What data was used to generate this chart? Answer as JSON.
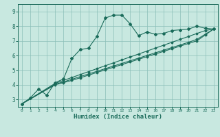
{
  "title": "",
  "xlabel": "Humidex (Indice chaleur)",
  "ylabel": "",
  "bg_color": "#c8e8e0",
  "grid_color": "#8bbfb8",
  "line_color": "#1a6b5a",
  "xlim": [
    -0.5,
    23.5
  ],
  "ylim": [
    2.5,
    9.5
  ],
  "xticks": [
    0,
    1,
    2,
    3,
    4,
    5,
    6,
    7,
    8,
    9,
    10,
    11,
    12,
    13,
    14,
    15,
    16,
    17,
    18,
    19,
    20,
    21,
    22,
    23
  ],
  "yticks": [
    3,
    4,
    5,
    6,
    7,
    8,
    9
  ],
  "series": [
    [
      0,
      2.7
    ],
    [
      1,
      3.1
    ],
    [
      2,
      3.7
    ],
    [
      3,
      3.3
    ],
    [
      4,
      4.15
    ],
    [
      5,
      4.4
    ],
    [
      6,
      5.8
    ],
    [
      7,
      6.4
    ],
    [
      8,
      6.5
    ],
    [
      9,
      7.3
    ],
    [
      10,
      8.55
    ],
    [
      11,
      8.75
    ],
    [
      12,
      8.75
    ],
    [
      13,
      8.15
    ],
    [
      14,
      7.35
    ],
    [
      15,
      7.6
    ],
    [
      16,
      7.45
    ],
    [
      17,
      7.5
    ],
    [
      18,
      7.7
    ],
    [
      19,
      7.75
    ],
    [
      20,
      7.8
    ],
    [
      21,
      8.0
    ],
    [
      22,
      7.85
    ],
    [
      23,
      7.8
    ]
  ],
  "line2": [
    [
      0,
      2.7
    ],
    [
      4,
      4.1
    ],
    [
      5,
      4.3
    ],
    [
      6,
      4.5
    ],
    [
      7,
      4.7
    ],
    [
      8,
      4.9
    ],
    [
      9,
      5.1
    ],
    [
      10,
      5.3
    ],
    [
      11,
      5.5
    ],
    [
      12,
      5.7
    ],
    [
      13,
      5.9
    ],
    [
      14,
      6.1
    ],
    [
      15,
      6.3
    ],
    [
      16,
      6.5
    ],
    [
      17,
      6.7
    ],
    [
      18,
      6.9
    ],
    [
      19,
      7.1
    ],
    [
      20,
      7.3
    ],
    [
      21,
      7.5
    ],
    [
      22,
      7.7
    ],
    [
      23,
      7.8
    ]
  ],
  "line3": [
    [
      0,
      2.7
    ],
    [
      4,
      4.05
    ],
    [
      5,
      4.2
    ],
    [
      6,
      4.38
    ],
    [
      7,
      4.56
    ],
    [
      8,
      4.74
    ],
    [
      9,
      4.92
    ],
    [
      10,
      5.1
    ],
    [
      11,
      5.28
    ],
    [
      12,
      5.46
    ],
    [
      13,
      5.64
    ],
    [
      14,
      5.82
    ],
    [
      15,
      6.0
    ],
    [
      16,
      6.18
    ],
    [
      17,
      6.36
    ],
    [
      18,
      6.54
    ],
    [
      19,
      6.72
    ],
    [
      20,
      6.9
    ],
    [
      21,
      7.1
    ],
    [
      22,
      7.45
    ],
    [
      23,
      7.8
    ]
  ],
  "line4": [
    [
      0,
      2.7
    ],
    [
      4,
      4.0
    ],
    [
      5,
      4.15
    ],
    [
      6,
      4.3
    ],
    [
      7,
      4.48
    ],
    [
      8,
      4.66
    ],
    [
      9,
      4.84
    ],
    [
      10,
      5.02
    ],
    [
      11,
      5.2
    ],
    [
      12,
      5.38
    ],
    [
      13,
      5.56
    ],
    [
      14,
      5.74
    ],
    [
      15,
      5.92
    ],
    [
      16,
      6.1
    ],
    [
      17,
      6.28
    ],
    [
      18,
      6.46
    ],
    [
      19,
      6.64
    ],
    [
      20,
      6.82
    ],
    [
      21,
      7.0
    ],
    [
      22,
      7.4
    ],
    [
      23,
      7.8
    ]
  ]
}
